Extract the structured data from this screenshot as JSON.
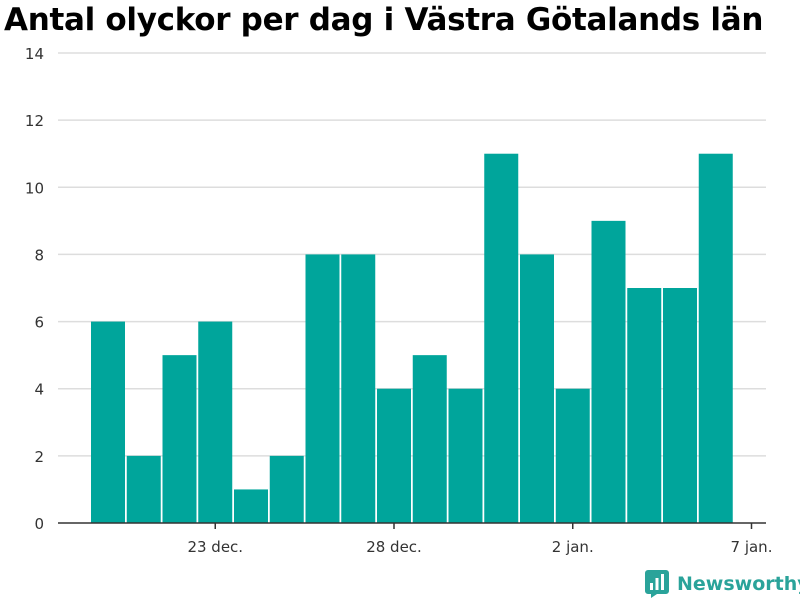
{
  "chart_data": {
    "type": "bar",
    "title": "Antal olyckor per dag i Västra Götalands län",
    "xlabel": "",
    "ylabel": "",
    "ylim": [
      0,
      14
    ],
    "yticks": [
      0,
      2,
      4,
      6,
      8,
      10,
      12,
      14
    ],
    "grid": true,
    "bar_color": "#00a59b",
    "x": [
      "2022-12-20",
      "2022-12-21",
      "2022-12-22",
      "2022-12-23",
      "2022-12-24",
      "2022-12-25",
      "2022-12-26",
      "2022-12-27",
      "2022-12-28",
      "2022-12-29",
      "2022-12-30",
      "2022-12-31",
      "2023-01-01",
      "2023-01-02",
      "2023-01-03",
      "2023-01-04",
      "2023-01-05",
      "2023-01-06"
    ],
    "values": [
      6,
      2,
      5,
      6,
      1,
      2,
      8,
      8,
      4,
      5,
      4,
      11,
      8,
      4,
      9,
      7,
      7,
      11
    ],
    "xtick_labels": [
      {
        "x": "2022-12-23",
        "label": "23 dec."
      },
      {
        "x": "2022-12-28",
        "label": "28 dec."
      },
      {
        "x": "2023-01-02",
        "label": "2 jan."
      },
      {
        "x": "2023-01-07",
        "label": "7 jan."
      }
    ]
  },
  "brand": {
    "name": "Newsworthy",
    "color": "#2aa39a",
    "icon": "bar-chart-logo-icon"
  }
}
